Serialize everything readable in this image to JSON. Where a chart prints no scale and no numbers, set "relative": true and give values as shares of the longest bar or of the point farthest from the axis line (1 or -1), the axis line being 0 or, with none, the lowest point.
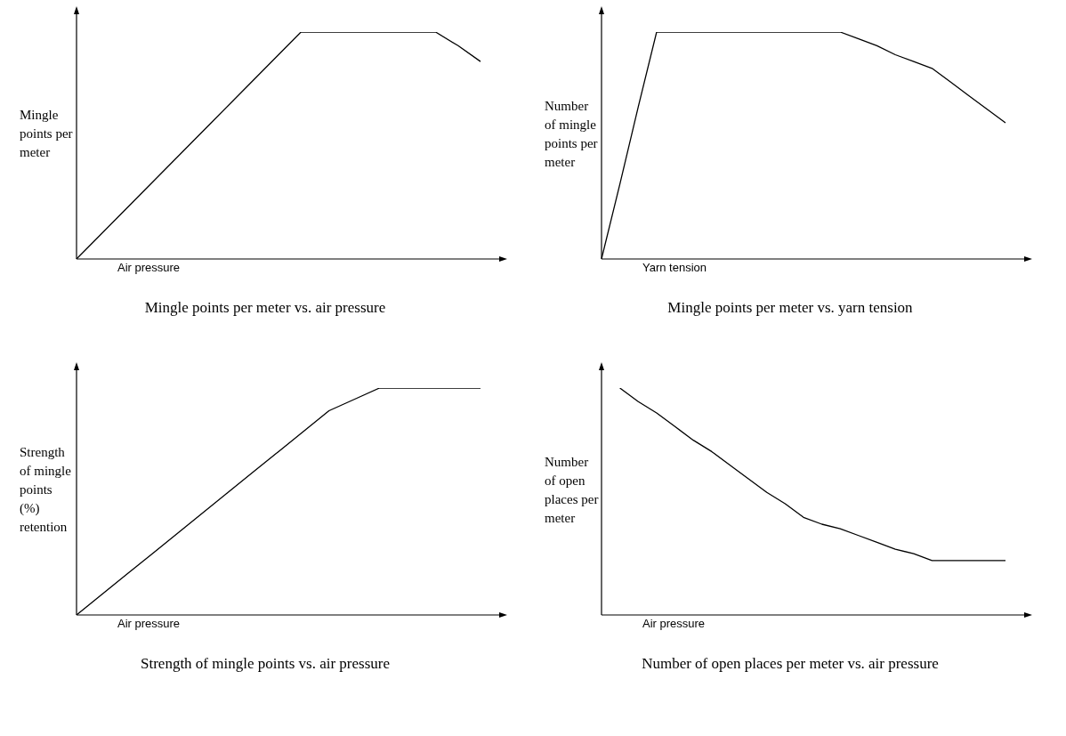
{
  "chart_data": [
    {
      "type": "line",
      "title": "Mingle points per meter vs. air pressure",
      "xlabel": "Air pressure",
      "ylabel": "Mingle points per meter",
      "relative": true,
      "marker": "none",
      "categories": [
        null,
        null,
        null,
        null,
        null,
        null,
        null,
        null,
        null,
        null,
        null,
        null,
        null,
        null,
        null,
        null,
        null,
        null,
        null
      ],
      "series": [
        {
          "color": "#000000",
          "values": [
            0,
            0.1,
            0.2,
            0.3,
            0.4,
            0.5,
            0.6,
            0.7,
            0.8,
            0.9,
            1,
            1,
            1,
            1,
            1,
            1,
            1,
            0.94,
            0.87
          ]
        }
      ]
    },
    {
      "type": "line",
      "title": "Mingle points per meter vs. yarn tension",
      "xlabel": "Yarn tension",
      "ylabel": "Number of mingle points per meter",
      "relative": true,
      "marker": "none",
      "categories": [
        null,
        null,
        null,
        null,
        null,
        null,
        null,
        null,
        null,
        null,
        null,
        null,
        null,
        null,
        null,
        null,
        null,
        null,
        null,
        null,
        null,
        null,
        null
      ],
      "series": [
        {
          "color": "#000000",
          "values": [
            0,
            0.33,
            0.67,
            1,
            1,
            1,
            1,
            1,
            1,
            1,
            1,
            1,
            1,
            1,
            0.97,
            0.94,
            0.9,
            0.87,
            0.84,
            0.78,
            0.72,
            0.66,
            0.6
          ]
        }
      ]
    },
    {
      "type": "line",
      "title": "Strength of mingle points vs. air pressure",
      "xlabel": "Air pressure",
      "ylabel": "Strength of mingle points (%) retention",
      "relative": true,
      "marker": "none",
      "categories": [
        null,
        null,
        null,
        null,
        null,
        null,
        null,
        null,
        null,
        null,
        null,
        null,
        null,
        null,
        null,
        null,
        null
      ],
      "series": [
        {
          "color": "#000000",
          "values": [
            0,
            0.09,
            0.18,
            0.27,
            0.36,
            0.45,
            0.54,
            0.63,
            0.72,
            0.81,
            0.9,
            0.95,
            1,
            1,
            1,
            1,
            1
          ]
        }
      ]
    },
    {
      "type": "line",
      "title": "Number of open places per meter vs. air pressure",
      "xlabel": "Air pressure",
      "ylabel": "Number of open places per meter",
      "relative": true,
      "marker": "none",
      "categories": [
        null,
        null,
        null,
        null,
        null,
        null,
        null,
        null,
        null,
        null,
        null,
        null,
        null,
        null,
        null,
        null,
        null,
        null,
        null,
        null,
        null,
        null,
        null
      ],
      "series": [
        {
          "color": "#000000",
          "values": [
            null,
            1,
            0.94,
            0.89,
            0.83,
            0.77,
            0.72,
            0.66,
            0.6,
            0.54,
            0.49,
            0.43,
            0.4,
            0.38,
            0.35,
            0.32,
            0.29,
            0.27,
            0.24,
            0.24,
            0.24,
            0.24,
            0.24
          ]
        }
      ]
    }
  ]
}
